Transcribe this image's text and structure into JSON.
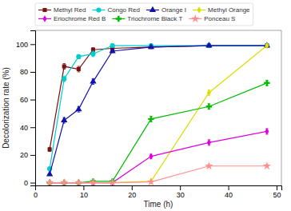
{
  "chart_data": {
    "type": "line",
    "xlabel": "Time (h)",
    "ylabel": "Decolorization rate (%)",
    "xlim": [
      0,
      51
    ],
    "ylim": [
      -2,
      110
    ],
    "xticks": [
      0,
      10,
      20,
      30,
      40,
      50
    ],
    "yticks": [
      0,
      20,
      40,
      60,
      80,
      100
    ],
    "legend": "top",
    "series": [
      {
        "name": "Methyl Red",
        "color": "#7B1010",
        "marker": "square",
        "x": [
          3,
          6,
          9,
          12,
          16,
          24,
          36,
          48
        ],
        "values": [
          24,
          84,
          82,
          96,
          97,
          98,
          99,
          99
        ],
        "yerr": [
          1.5,
          2,
          2,
          1.5,
          1,
          0.8,
          0.5,
          0.5
        ]
      },
      {
        "name": "Congo Red",
        "color": "#00CCCC",
        "marker": "circle",
        "x": [
          3,
          6,
          9,
          12,
          16,
          24,
          36,
          48
        ],
        "values": [
          10,
          75,
          91,
          93,
          99,
          99,
          99,
          99
        ],
        "yerr": [
          1,
          2,
          1.5,
          2,
          0.5,
          0.5,
          0.5,
          0.5
        ]
      },
      {
        "name": "Orange I",
        "color": "#1010AA",
        "marker": "triangle",
        "x": [
          3,
          6,
          9,
          12,
          16,
          24,
          36,
          48
        ],
        "values": [
          6,
          45,
          53,
          73,
          95,
          98,
          99,
          99
        ],
        "yerr": [
          0.5,
          2,
          2,
          2,
          1,
          1,
          0.5,
          0.5
        ]
      },
      {
        "name": "Methyl Orange",
        "color": "#DDDD00",
        "marker": "diamond",
        "x": [
          3,
          6,
          9,
          12,
          16,
          24,
          36,
          48
        ],
        "values": [
          0,
          0,
          0,
          0,
          0,
          1,
          65,
          99
        ],
        "yerr": [
          0,
          0,
          0,
          0,
          0,
          0.5,
          2,
          1
        ]
      },
      {
        "name": "Eriochrome Red B",
        "color": "#DD00DD",
        "marker": "diamond",
        "x": [
          3,
          6,
          9,
          12,
          16,
          24,
          36,
          48
        ],
        "values": [
          0,
          0,
          0,
          0,
          0,
          19,
          29,
          37
        ],
        "yerr": [
          0,
          0,
          0,
          0,
          0,
          1.5,
          2,
          2
        ]
      },
      {
        "name": "Triochrome Black T",
        "color": "#00BB00",
        "marker": "plus",
        "x": [
          3,
          6,
          9,
          12,
          16,
          24,
          36,
          48
        ],
        "values": [
          0,
          0,
          0,
          1,
          1,
          46,
          55,
          72
        ],
        "yerr": [
          0,
          0,
          0,
          0.5,
          0.5,
          2,
          2,
          2
        ]
      },
      {
        "name": "Ponceau S",
        "color": "#FF9090",
        "marker": "star",
        "x": [
          3,
          6,
          9,
          12,
          16,
          24,
          36,
          48
        ],
        "values": [
          0,
          0,
          0,
          0,
          0,
          0.5,
          12,
          12
        ],
        "yerr": [
          0,
          0,
          0,
          0,
          0,
          0,
          1,
          1
        ]
      }
    ]
  }
}
